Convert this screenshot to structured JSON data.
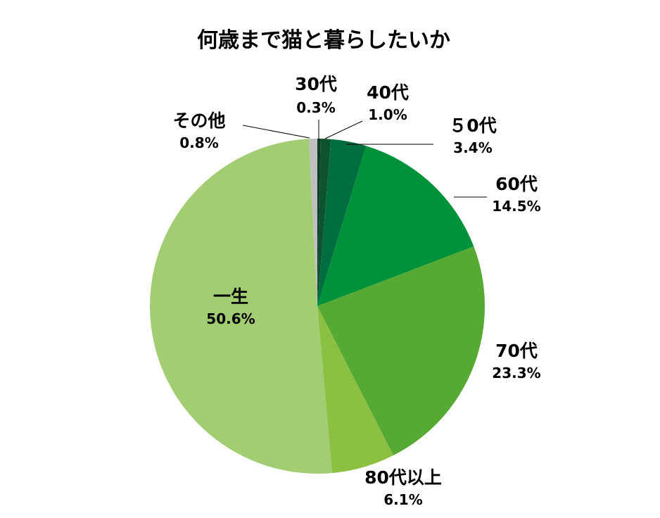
{
  "chart_data": {
    "type": "pie",
    "title": "何歳まで猫と暮らしたいか",
    "slices": [
      {
        "label": "30代",
        "percent_label": "0.3%",
        "value": 0.3,
        "color": "#0d3b26"
      },
      {
        "label": "40代",
        "percent_label": "1.0%",
        "value": 1.0,
        "color": "#0f5230"
      },
      {
        "label": "５0代",
        "percent_label": "3.4%",
        "value": 3.4,
        "color": "#006e3f"
      },
      {
        "label": "60代",
        "percent_label": "14.5%",
        "value": 14.5,
        "color": "#00923a"
      },
      {
        "label": "70代",
        "percent_label": "23.3%",
        "value": 23.3,
        "color": "#56a933"
      },
      {
        "label": "80代以上",
        "percent_label": "6.1%",
        "value": 6.1,
        "color": "#8bc043"
      },
      {
        "label": "一生",
        "percent_label": "50.6%",
        "value": 50.6,
        "color": "#a2cd73"
      },
      {
        "label": "その他",
        "percent_label": "0.8%",
        "value": 0.8,
        "color": "#bfbfbf"
      }
    ]
  }
}
